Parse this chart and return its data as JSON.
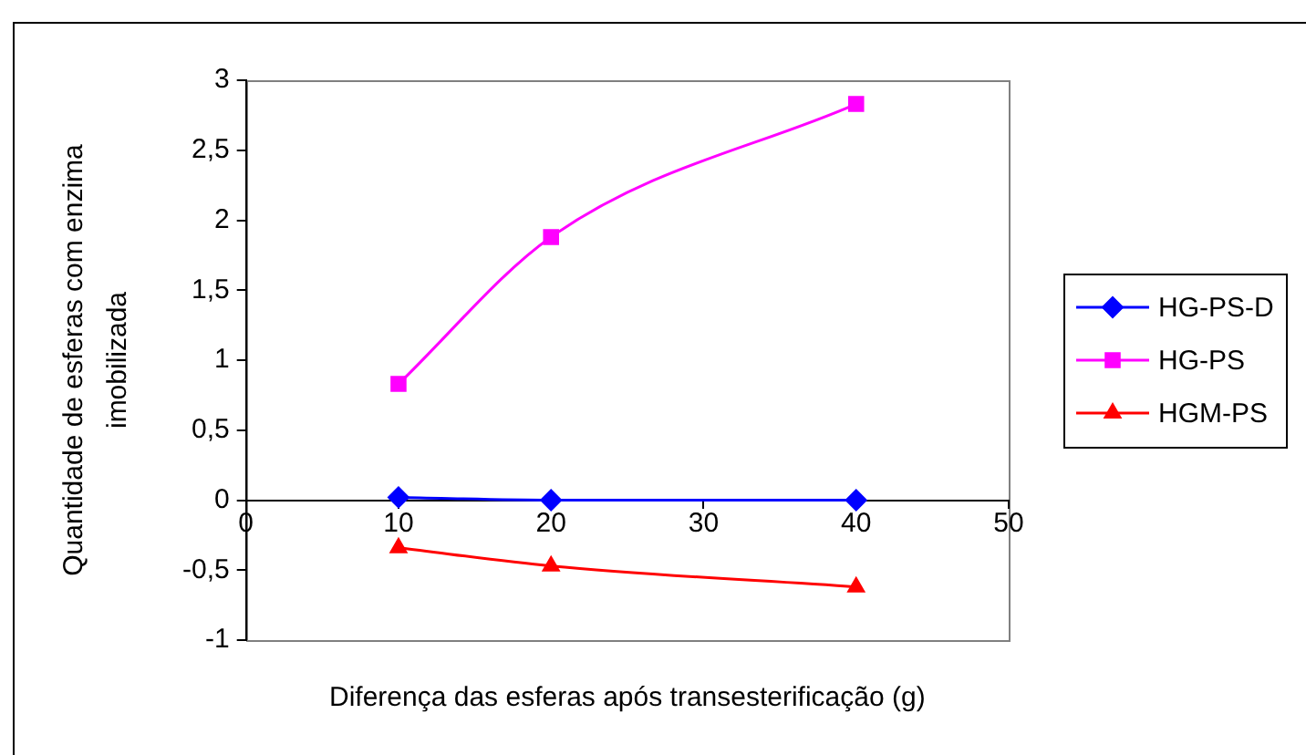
{
  "chart_data": {
    "type": "line",
    "xlabel": "Diferença das esferas após transesterificação (g)",
    "ylabel": "Quantidade de esferas com enzima imobilizada",
    "x": [
      10,
      20,
      40
    ],
    "series": [
      {
        "name": "HG-PS-D",
        "color": "#0000ff",
        "marker": "diamond",
        "values": [
          0.02,
          0,
          0
        ]
      },
      {
        "name": "HG-PS",
        "color": "#ff00ff",
        "marker": "square",
        "values": [
          0.83,
          1.88,
          2.83
        ]
      },
      {
        "name": "HGM-PS",
        "color": "#ff0000",
        "marker": "triangle",
        "values": [
          -0.34,
          -0.47,
          -0.62
        ]
      }
    ],
    "xlim": [
      0,
      50
    ],
    "xticks": [
      0,
      10,
      20,
      30,
      40,
      50
    ],
    "ylim": [
      -1,
      3
    ],
    "yticks": [
      -1,
      {
        "value": -0.5,
        "label": "-0,5"
      },
      0,
      {
        "value": 0.5,
        "label": "0,5"
      },
      1,
      {
        "value": 1.5,
        "label": "1,5"
      },
      2,
      {
        "value": 2.5,
        "label": "2,5"
      },
      3
    ],
    "legend": "right"
  }
}
